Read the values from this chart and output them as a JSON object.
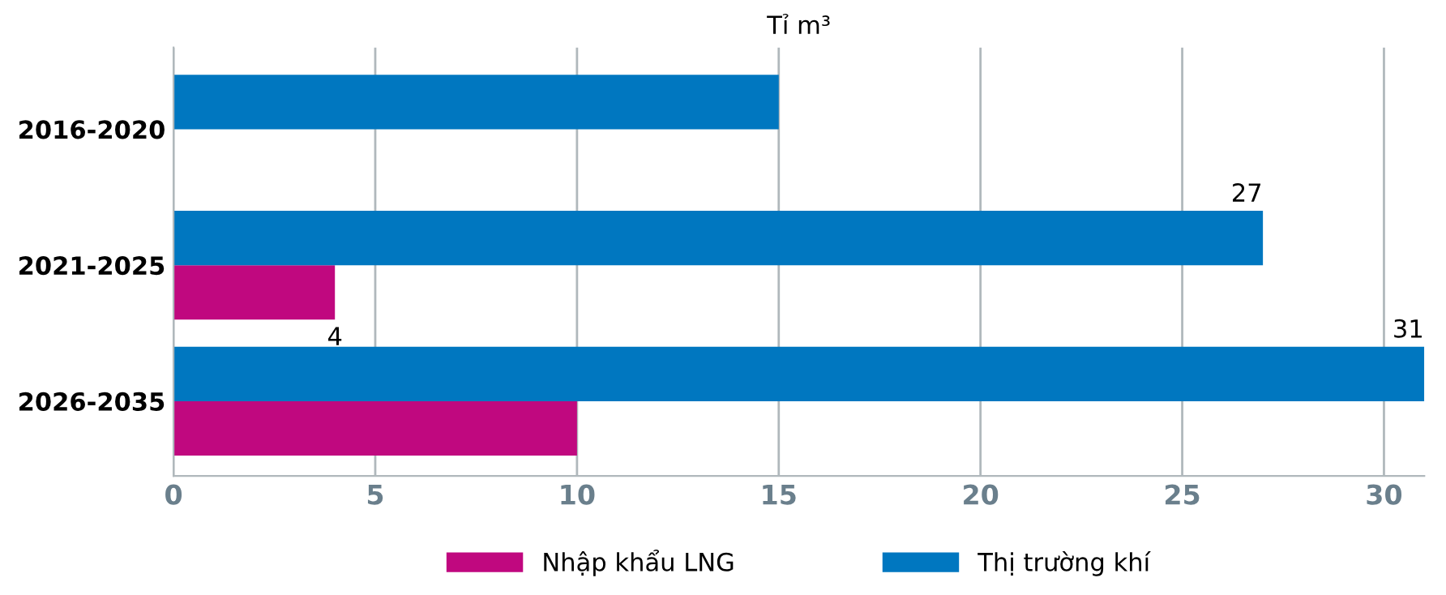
{
  "chart_data": {
    "type": "bar",
    "orientation": "horizontal",
    "title": "Tỉ m³",
    "categories": [
      "2016-2020",
      "2021-2025",
      "2026-2035"
    ],
    "series": [
      {
        "name": "Nhập khẩu LNG",
        "color": "#c0087f",
        "values": [
          null,
          4,
          10
        ],
        "value_labels": [
          null,
          "4",
          null
        ]
      },
      {
        "name": "Thị trường khí",
        "color": "#0077c0",
        "values": [
          15,
          27,
          31
        ],
        "value_labels": [
          null,
          "27",
          "31"
        ]
      }
    ],
    "xlim": [
      0,
      31
    ],
    "xticks": [
      0,
      5,
      10,
      15,
      20,
      25,
      30
    ],
    "grid": "x",
    "legend": "bottom"
  }
}
